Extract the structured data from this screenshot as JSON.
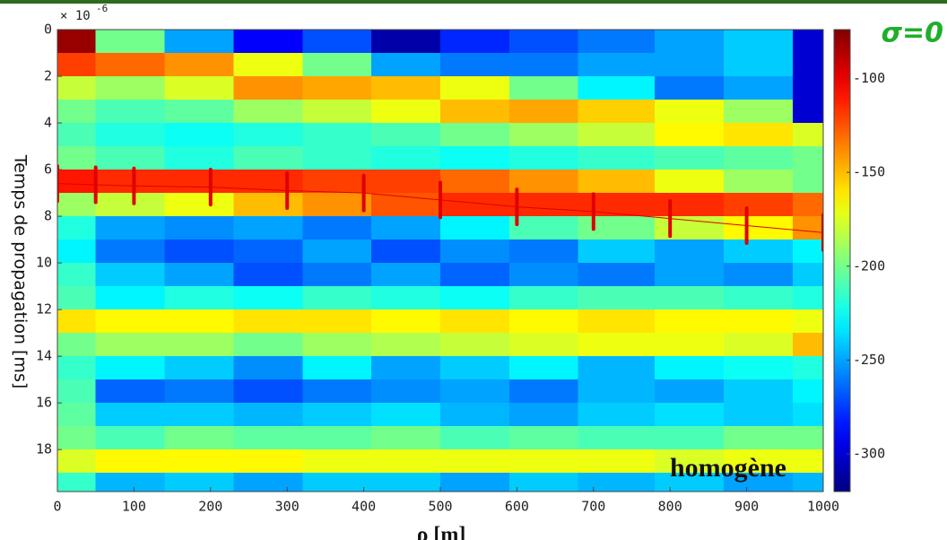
{
  "chart_data": {
    "type": "heatmap",
    "y_label": "Temps de propagation [ms]",
    "x_label": "ρ [m]",
    "y_multiplier": "× 10",
    "y_multiplier_exp": "-6",
    "annotation_sigma": "σ=0",
    "annotation_case": "homogène",
    "colormap": "jet",
    "y_inverted": true,
    "x_edges": [
      0,
      50,
      140,
      230,
      320,
      410,
      500,
      590,
      680,
      780,
      870,
      960,
      1000
    ],
    "y_edges": [
      0,
      1,
      2,
      3,
      4,
      5,
      6,
      7,
      8,
      9,
      10,
      11,
      12,
      13,
      14,
      15,
      16,
      17,
      18,
      19,
      20
    ],
    "z": [
      [
        -80,
        -200,
        -250,
        -290,
        -270,
        -310,
        -280,
        -270,
        -260,
        -250,
        -240,
        -300
      ],
      [
        -120,
        -130,
        -140,
        -170,
        -200,
        -250,
        -260,
        -260,
        -250,
        -250,
        -240,
        -300
      ],
      [
        -180,
        -190,
        -175,
        -140,
        -145,
        -150,
        -170,
        -200,
        -230,
        -260,
        -250,
        -300
      ],
      [
        -200,
        -210,
        -205,
        -190,
        -180,
        -170,
        -150,
        -145,
        -155,
        -170,
        -190,
        -300
      ],
      [
        -210,
        -220,
        -225,
        -220,
        -215,
        -210,
        -200,
        -190,
        -180,
        -165,
        -160,
        -175
      ],
      [
        -200,
        -210,
        -220,
        -210,
        -215,
        -220,
        -225,
        -220,
        -215,
        -210,
        -205,
        -200
      ],
      [
        -110,
        -115,
        -115,
        -115,
        -120,
        -120,
        -130,
        -140,
        -150,
        -170,
        -190,
        -200
      ],
      [
        -190,
        -180,
        -170,
        -150,
        -140,
        -125,
        -115,
        -115,
        -115,
        -115,
        -120,
        -130
      ],
      [
        -220,
        -250,
        -255,
        -250,
        -260,
        -250,
        -230,
        -210,
        -200,
        -180,
        -165,
        -140
      ],
      [
        -230,
        -260,
        -270,
        -265,
        -250,
        -270,
        -255,
        -260,
        -240,
        -250,
        -240,
        -230
      ],
      [
        -215,
        -240,
        -250,
        -270,
        -260,
        -250,
        -265,
        -255,
        -260,
        -250,
        -255,
        -240
      ],
      [
        -210,
        -230,
        -220,
        -225,
        -215,
        -220,
        -225,
        -215,
        -210,
        -210,
        -215,
        -220
      ],
      [
        -160,
        -165,
        -165,
        -160,
        -160,
        -165,
        -160,
        -165,
        -160,
        -165,
        -165,
        -170
      ],
      [
        -200,
        -190,
        -190,
        -200,
        -190,
        -185,
        -180,
        -175,
        -170,
        -170,
        -175,
        -150
      ],
      [
        -215,
        -230,
        -240,
        -255,
        -230,
        -250,
        -240,
        -230,
        -245,
        -230,
        -225,
        -220
      ],
      [
        -210,
        -265,
        -260,
        -270,
        -260,
        -255,
        -250,
        -260,
        -245,
        -250,
        -240,
        -230
      ],
      [
        -205,
        -240,
        -240,
        -245,
        -240,
        -235,
        -245,
        -250,
        -240,
        -235,
        -240,
        -235
      ],
      [
        -200,
        -210,
        -200,
        -205,
        -205,
        -200,
        -210,
        -205,
        -210,
        -210,
        -200,
        -200
      ],
      [
        -175,
        -165,
        -165,
        -165,
        -170,
        -170,
        -170,
        -170,
        -170,
        -175,
        -170,
        -170
      ],
      [
        -215,
        -245,
        -240,
        -250,
        -240,
        -240,
        -250,
        -240,
        -245,
        -240,
        -250,
        -245
      ]
    ],
    "xlim": [
      0,
      1000
    ],
    "xticks": [
      0,
      100,
      200,
      300,
      400,
      500,
      600,
      700,
      800,
      900,
      1000
    ],
    "ylim": [
      0,
      19.8
    ],
    "yticks": [
      0,
      2,
      4,
      6,
      8,
      10,
      12,
      14,
      16,
      18
    ],
    "clim": [
      -320,
      -74
    ],
    "cticks": [
      -100,
      -150,
      -200,
      -250,
      -300
    ],
    "arrivals": {
      "color": "#e00000",
      "x": [
        0,
        50,
        100,
        200,
        300,
        400,
        500,
        600,
        700,
        800,
        900,
        1000
      ],
      "y": [
        6.6,
        6.65,
        6.7,
        6.75,
        6.9,
        7.0,
        7.3,
        7.6,
        7.8,
        8.1,
        8.4,
        8.7
      ],
      "err": [
        0.75,
        0.75,
        0.75,
        0.75,
        0.75,
        0.75,
        0.75,
        0.75,
        0.75,
        0.75,
        0.75,
        0.75
      ]
    }
  }
}
